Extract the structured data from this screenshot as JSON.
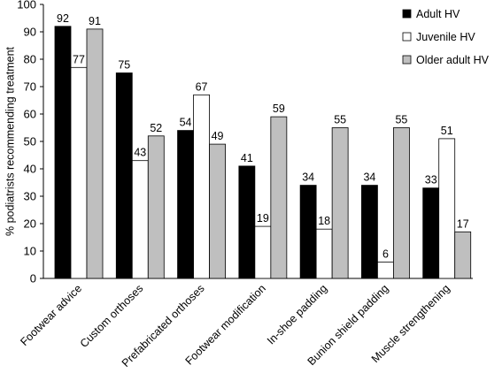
{
  "chart_data": {
    "type": "bar",
    "categories": [
      "Footwear advice",
      "Custom orthoses",
      "Prefabricated orthoses",
      "Footwear modification",
      "In-shoe padding",
      "Bunion shield padding",
      "Muscle strengthening"
    ],
    "series": [
      {
        "name": "Adult HV",
        "color": "#000000",
        "values": [
          92,
          75,
          54,
          41,
          34,
          34,
          33
        ]
      },
      {
        "name": "Juvenile HV",
        "color": "#ffffff",
        "values": [
          77,
          43,
          67,
          19,
          18,
          6,
          51
        ]
      },
      {
        "name": "Older adult HV",
        "color": "#bfbfbf",
        "values": [
          91,
          52,
          49,
          59,
          55,
          55,
          17
        ]
      }
    ],
    "ylabel": "% podiatrists recommending treatment",
    "xlabel": "",
    "ylim": [
      0,
      100
    ],
    "yticks": [
      0,
      10,
      20,
      30,
      40,
      50,
      60,
      70,
      80,
      90,
      100
    ],
    "grid": false,
    "legend": "top-right",
    "data_labels": true
  }
}
